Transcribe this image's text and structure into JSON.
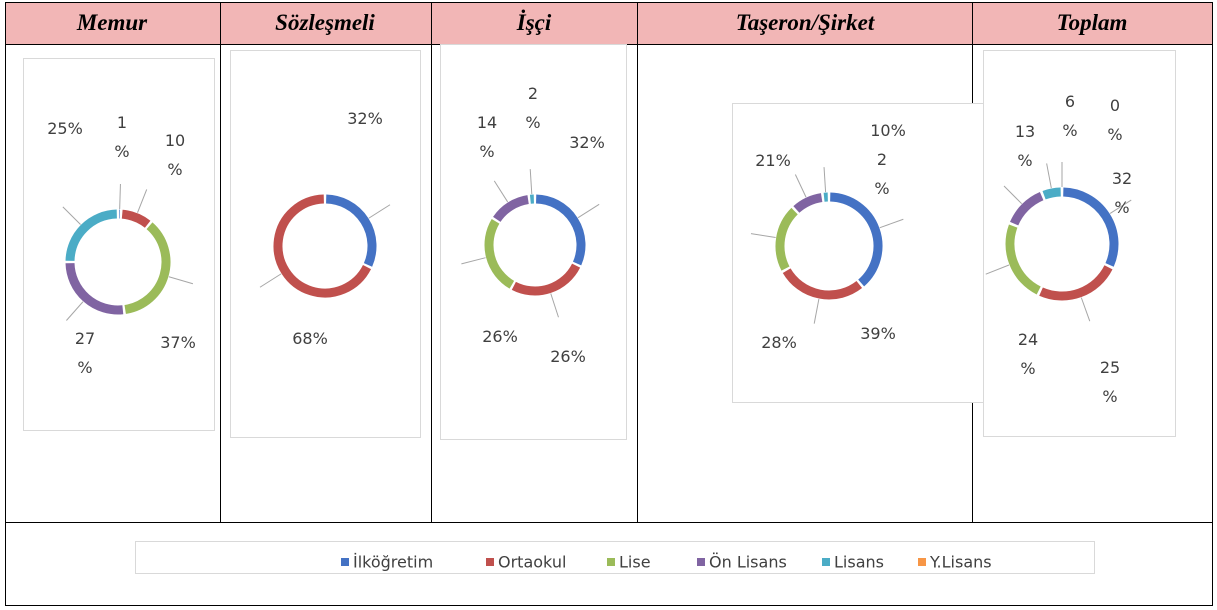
{
  "chart_data": [
    {
      "type": "donut",
      "title": "Memur",
      "categories": [
        "İlköğretim",
        "Ortaokul",
        "Lise",
        "Ön Lisans",
        "Lisans",
        "Y.Lisans"
      ],
      "colors": [
        "#4472c4",
        "#c0504d",
        "#9bbb59",
        "#8064a2",
        "#4bacc6",
        "#f79646"
      ],
      "values": [
        1,
        10,
        37,
        27,
        25,
        0
      ],
      "value_labels": [
        "1%",
        "10%",
        "37%",
        "27%",
        "25%",
        null
      ]
    },
    {
      "type": "donut",
      "title": "Sözleşmeli",
      "categories": [
        "İlköğretim",
        "Ortaokul",
        "Lise",
        "Ön Lisans",
        "Lisans",
        "Y.Lisans"
      ],
      "colors": [
        "#4472c4",
        "#c0504d",
        "#9bbb59",
        "#8064a2",
        "#4bacc6",
        "#f79646"
      ],
      "values": [
        32,
        68,
        0,
        0,
        0,
        0
      ],
      "value_labels": [
        "32%",
        "68%",
        null,
        null,
        null,
        null
      ]
    },
    {
      "type": "donut",
      "title": "İşçi",
      "categories": [
        "İlköğretim",
        "Ortaokul",
        "Lise",
        "Ön Lisans",
        "Lisans",
        "Y.Lisans"
      ],
      "colors": [
        "#4472c4",
        "#c0504d",
        "#9bbb59",
        "#8064a2",
        "#4bacc6",
        "#f79646"
      ],
      "values": [
        32,
        26,
        26,
        14,
        2,
        0
      ],
      "value_labels": [
        "32%",
        "26%",
        "26%",
        "14%",
        "2%",
        null
      ]
    },
    {
      "type": "donut",
      "title": "Taşeron/Şirket",
      "categories": [
        "İlköğretim",
        "Ortaokul",
        "Lise",
        "Ön Lisans",
        "Lisans",
        "Y.Lisans"
      ],
      "colors": [
        "#4472c4",
        "#c0504d",
        "#9bbb59",
        "#8064a2",
        "#4bacc6",
        "#f79646"
      ],
      "values": [
        39,
        28,
        21,
        10,
        2,
        0
      ],
      "value_labels": [
        "39%",
        "28%",
        "21%",
        "10%",
        "2%",
        null
      ]
    },
    {
      "type": "donut",
      "title": "Toplam",
      "categories": [
        "İlköğretim",
        "Ortaokul",
        "Lise",
        "Ön Lisans",
        "Lisans",
        "Y.Lisans"
      ],
      "colors": [
        "#4472c4",
        "#c0504d",
        "#9bbb59",
        "#8064a2",
        "#4bacc6",
        "#f79646"
      ],
      "values": [
        32,
        25,
        24,
        13,
        6,
        0
      ],
      "value_labels": [
        "32%",
        "25%",
        "24%",
        "13%",
        "6%",
        "0%"
      ]
    }
  ]
}
